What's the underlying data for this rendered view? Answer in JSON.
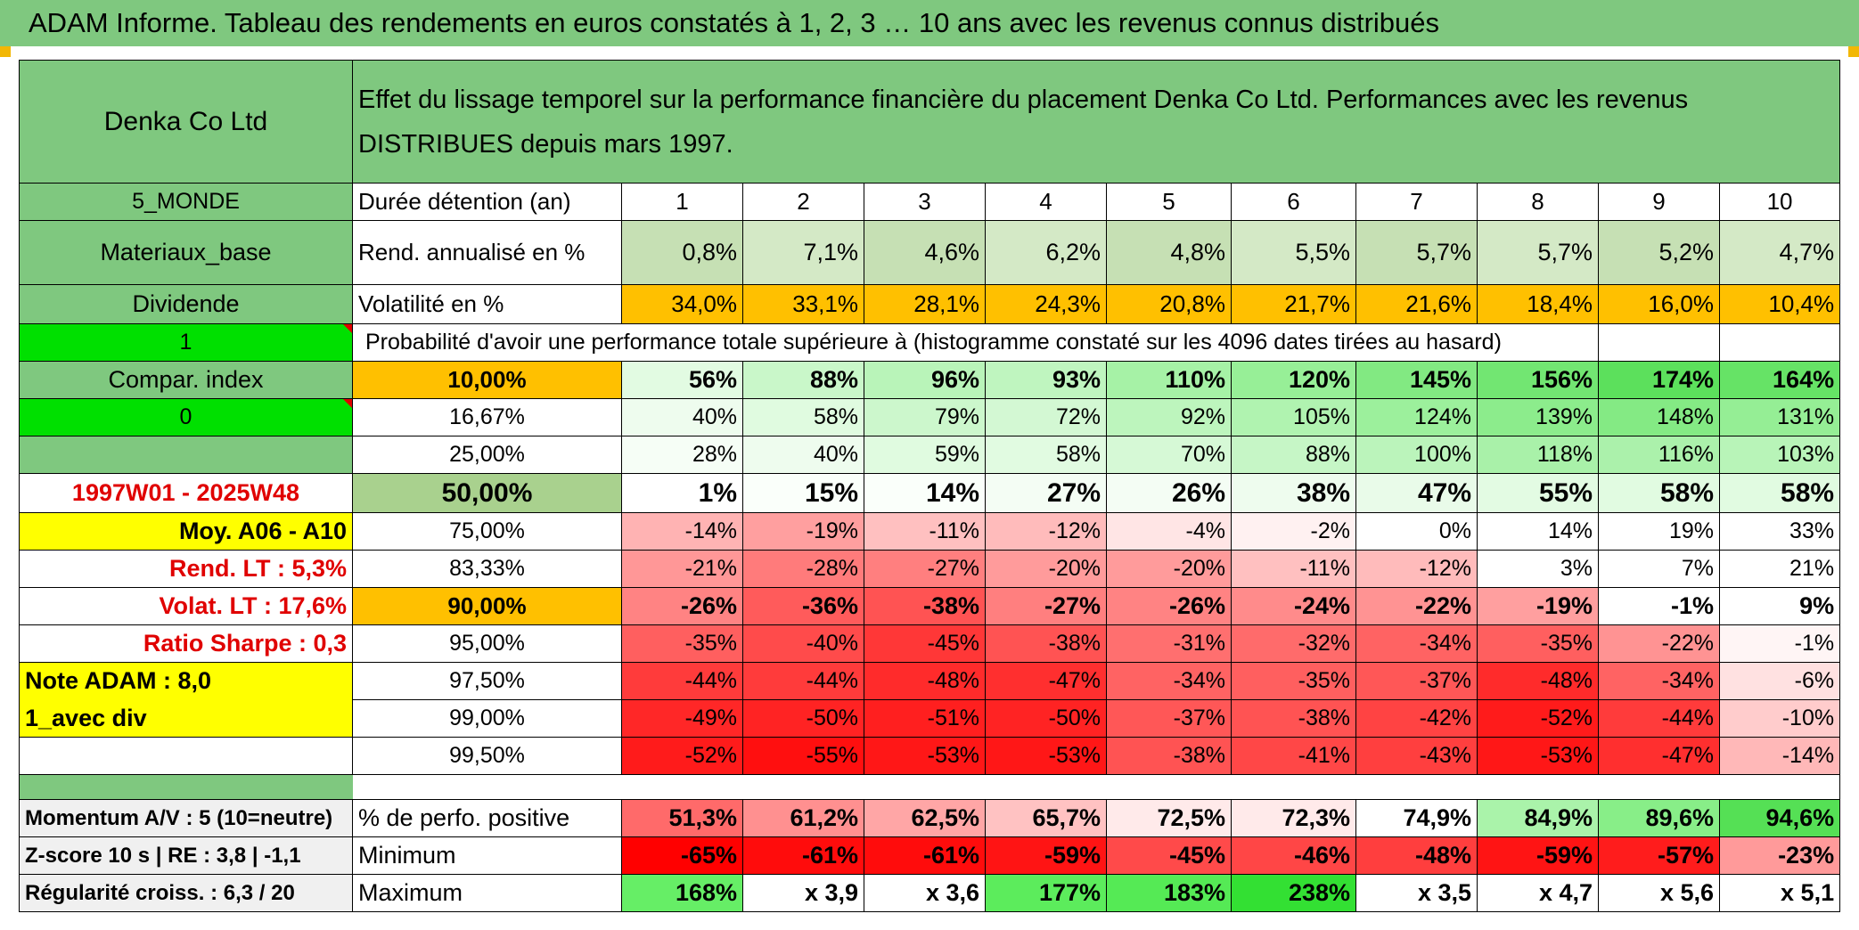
{
  "title": "ADAM Informe. Tableau des rendements en euros constatés à 1, 2, 3 … 10 ans avec les revenus connus distribués",
  "header": {
    "company": "Denka Co Ltd",
    "description": "Effet du lissage temporel sur la performance financière du placement Denka Co Ltd. Performances avec les revenus DISTRIBUES depuis mars 1997."
  },
  "side": {
    "region": "5_MONDE",
    "sector": "Materiaux_base",
    "type": "Dividende",
    "flag1": "1",
    "compar": "Compar. index",
    "flag0": "0",
    "period": "1997W01 - 2025W48",
    "moy": "Moy. A06 - A10",
    "rend_lt": "Rend. LT :   5,3%",
    "volat_lt": "Volat. LT :   17,6%",
    "sharpe": "Ratio Sharpe :    0,3",
    "note": "Note ADAM : 8,0",
    "avec_div": "1_avec div",
    "momentum": "Momentum A/V : 5 (10=neutre)",
    "zscore": "Z-score 10 s | RE : 3,8 | -1,1",
    "regularite": "Régularité croiss. : 6,3 / 20"
  },
  "labels": {
    "duree": "Durée détention (an)",
    "rend": "Rend. annualisé en %",
    "volat": "Volatilité en %",
    "proba": "Probabilité d'avoir une performance totale supérieure à (histogramme constaté sur les 4096 dates tirées au hasard)",
    "positive": "% de perfo. positive",
    "minimum": "Minimum",
    "maximum": "Maximum"
  },
  "years": [
    "1",
    "2",
    "3",
    "4",
    "5",
    "6",
    "7",
    "8",
    "9",
    "10"
  ],
  "rend": [
    "0,8%",
    "7,1%",
    "4,6%",
    "6,2%",
    "4,8%",
    "5,5%",
    "5,7%",
    "5,7%",
    "5,2%",
    "4,7%"
  ],
  "volat": [
    "34,0%",
    "33,1%",
    "28,1%",
    "24,3%",
    "20,8%",
    "21,7%",
    "21,6%",
    "18,4%",
    "16,0%",
    "10,4%"
  ],
  "quantiles": [
    {
      "label": "10,00%",
      "values": [
        "56%",
        "88%",
        "96%",
        "93%",
        "110%",
        "120%",
        "145%",
        "156%",
        "174%",
        "164%"
      ],
      "colors": [
        "#e2fbe2",
        "#c9f7c9",
        "#b9f4b9",
        "#bff5bf",
        "#a6f2a6",
        "#97ef97",
        "#82e982",
        "#72e672",
        "#5ce05c",
        "#66e366"
      ]
    },
    {
      "label": "16,67%",
      "values": [
        "40%",
        "58%",
        "79%",
        "72%",
        "92%",
        "105%",
        "124%",
        "139%",
        "148%",
        "131%"
      ],
      "colors": [
        "#eefcee",
        "#e0fbe0",
        "#ccf7cc",
        "#d3f8d3",
        "#bdf5bd",
        "#b0f3b0",
        "#9cf09c",
        "#8cec8c",
        "#84ea84",
        "#95ee95"
      ]
    },
    {
      "label": "25,00%",
      "values": [
        "28%",
        "40%",
        "59%",
        "58%",
        "70%",
        "88%",
        "100%",
        "118%",
        "116%",
        "103%"
      ],
      "colors": [
        "#f6fef6",
        "#eefcee",
        "#e0fbe0",
        "#e1fbe1",
        "#d6f9d6",
        "#c6f6c6",
        "#bbf4bb",
        "#a9f1a9",
        "#abf1ab",
        "#b8f4b8"
      ]
    },
    {
      "label": "50,00%",
      "values": [
        "1%",
        "15%",
        "14%",
        "27%",
        "26%",
        "38%",
        "47%",
        "55%",
        "58%",
        "58%"
      ],
      "colors": [
        "#ffffff",
        "#fafffa",
        "#fafffa",
        "#f4fdf4",
        "#f4fdf4",
        "#eefcee",
        "#e9fbe9",
        "#e3fbe3",
        "#e1fbe1",
        "#e1fbe1"
      ]
    },
    {
      "label": "75,00%",
      "values": [
        "-14%",
        "-19%",
        "-11%",
        "-12%",
        "-4%",
        "-2%",
        "0%",
        "14%",
        "19%",
        "33%"
      ],
      "colors": [
        "#ffb3b3",
        "#ff9f9f",
        "#ffc0c0",
        "#ffbbbb",
        "#ffe5e5",
        "#fff1f1",
        "#ffffff",
        "#ffffff",
        "#ffffff",
        "#ffffff"
      ]
    },
    {
      "label": "83,33%",
      "values": [
        "-21%",
        "-28%",
        "-27%",
        "-20%",
        "-20%",
        "-11%",
        "-12%",
        "3%",
        "7%",
        "21%"
      ],
      "colors": [
        "#ff9797",
        "#ff7b7b",
        "#ff7f7f",
        "#ff9b9b",
        "#ff9b9b",
        "#ffc0c0",
        "#ffbbbb",
        "#ffffff",
        "#ffffff",
        "#ffffff"
      ]
    },
    {
      "label": "90,00%",
      "values": [
        "-26%",
        "-36%",
        "-38%",
        "-27%",
        "-26%",
        "-24%",
        "-22%",
        "-19%",
        "-1%",
        "9%"
      ],
      "colors": [
        "#ff8383",
        "#ff5b5b",
        "#ff5353",
        "#ff7f7f",
        "#ff8383",
        "#ff8b8b",
        "#ff9393",
        "#ff9f9f",
        "#ffffff",
        "#ffffff"
      ]
    },
    {
      "label": "95,00%",
      "values": [
        "-35%",
        "-40%",
        "-45%",
        "-38%",
        "-31%",
        "-32%",
        "-34%",
        "-35%",
        "-22%",
        "-1%"
      ],
      "colors": [
        "#ff5f5f",
        "#ff4b4b",
        "#ff3737",
        "#ff5353",
        "#ff6f6f",
        "#ff6b6b",
        "#ff6363",
        "#ff5f5f",
        "#ff9393",
        "#fff5f5"
      ]
    },
    {
      "label": "97,50%",
      "values": [
        "-44%",
        "-44%",
        "-48%",
        "-47%",
        "-34%",
        "-35%",
        "-37%",
        "-48%",
        "-34%",
        "-6%"
      ],
      "colors": [
        "#ff3b3b",
        "#ff3b3b",
        "#ff2b2b",
        "#ff2f2f",
        "#ff6363",
        "#ff5f5f",
        "#ff5757",
        "#ff2b2b",
        "#ff6363",
        "#ffe1e1"
      ]
    },
    {
      "label": "99,00%",
      "values": [
        "-49%",
        "-50%",
        "-51%",
        "-50%",
        "-37%",
        "-38%",
        "-42%",
        "-52%",
        "-44%",
        "-10%"
      ],
      "colors": [
        "#ff2727",
        "#ff2323",
        "#ff1f1f",
        "#ff2323",
        "#ff5757",
        "#ff5353",
        "#ff4343",
        "#ff1b1b",
        "#ff3b3b",
        "#ffcccc"
      ]
    },
    {
      "label": "99,50%",
      "values": [
        "-52%",
        "-55%",
        "-53%",
        "-53%",
        "-38%",
        "-41%",
        "-43%",
        "-53%",
        "-47%",
        "-14%"
      ],
      "colors": [
        "#ff1b1b",
        "#ff0f0f",
        "#ff1717",
        "#ff1717",
        "#ff5353",
        "#ff4747",
        "#ff3f3f",
        "#ff1717",
        "#ff2f2f",
        "#ffb8b8"
      ]
    }
  ],
  "positive": {
    "values": [
      "51,3%",
      "61,2%",
      "62,5%",
      "65,7%",
      "72,5%",
      "72,3%",
      "74,9%",
      "84,9%",
      "89,6%",
      "94,6%"
    ],
    "colors": [
      "#ff6a6a",
      "#ff9090",
      "#ffa6a6",
      "#ffc2c2",
      "#ffeaea",
      "#ffeaea",
      "#ffffff",
      "#aaf3aa",
      "#88ee88",
      "#55e055"
    ]
  },
  "minimum": {
    "values": [
      "-65%",
      "-61%",
      "-61%",
      "-59%",
      "-45%",
      "-46%",
      "-48%",
      "-59%",
      "-57%",
      "-23%"
    ],
    "colors": [
      "#ff0000",
      "#ff0c0c",
      "#ff0c0c",
      "#ff1414",
      "#ff4a4a",
      "#ff4646",
      "#ff3e3e",
      "#ff1414",
      "#ff1c1c",
      "#ff9a9a"
    ]
  },
  "maximum": {
    "values": [
      "168%",
      "x 3,9",
      "x 3,6",
      "177%",
      "183%",
      "238%",
      "x 3,5",
      "x 4,7",
      "x 5,6",
      "x 5,1"
    ],
    "colors": [
      "#66ee66",
      "#ffffff",
      "#ffffff",
      "#5cec5c",
      "#55ea55",
      "#33e033",
      "#ffffff",
      "#ffffff",
      "#ffffff",
      "#ffffff"
    ]
  },
  "style": {
    "header_green": "#7fc87f",
    "bright_green": "#00e000",
    "yellow": "#ffff00",
    "orange": "#ffc000",
    "red_text": "#e00000"
  }
}
